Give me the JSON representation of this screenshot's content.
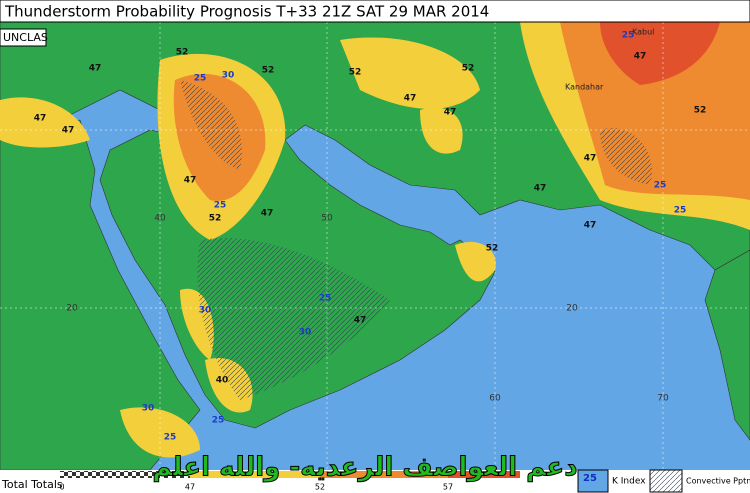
{
  "header": {
    "title": "Thunderstorm Probability Prognosis T+33 21Z SAT 29 MAR 2014",
    "classification": "UNCLAS"
  },
  "map": {
    "places": [
      "Kandahar",
      "Kabul"
    ],
    "graticule_labels": [
      "20",
      "20",
      "40",
      "50",
      "60",
      "70"
    ],
    "contour_labels": [
      "47",
      "52",
      "47",
      "47",
      "25",
      "30",
      "52",
      "47",
      "52",
      "47",
      "52",
      "52",
      "47",
      "25",
      "47",
      "47",
      "52",
      "25",
      "47",
      "25",
      "30",
      "47",
      "25",
      "30",
      "40",
      "25",
      "30",
      "25",
      "47",
      "25",
      "52",
      "47"
    ]
  },
  "legend": {
    "title": "Total Totals",
    "scale_ticks": [
      "0",
      "47",
      "52",
      "57"
    ],
    "k_index_sample": "25",
    "k_index_label": "K Index",
    "convective_label": "Convective Pptn"
  },
  "banner": "دعم العواصف الرعديه- والله اعلم"
}
